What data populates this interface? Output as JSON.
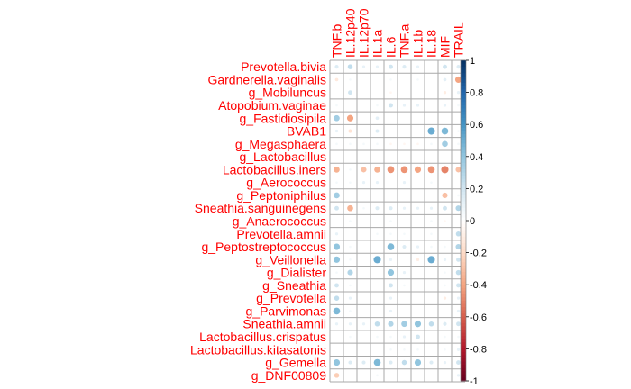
{
  "chart_data": {
    "type": "heatmap",
    "style": "circle correlation plot",
    "columns": [
      "TNF.b",
      "IL.12p40",
      "IL.12p70",
      "IL.1a",
      "IL.6",
      "TNF.a",
      "IL.1b",
      "IL.18",
      "MIF",
      "TRAIL"
    ],
    "rows": [
      "Prevotella.bivia",
      "Gardnerella.vaginalis",
      "g_Mobiluncus",
      "Atopobium.vaginae",
      "g_Fastidiosipila",
      "BVAB1",
      "g_Megasphaera",
      "g_Lactobacillus",
      "Lactobacillus.iners",
      "g_Aerococcus",
      "g_Peptoniphilus",
      "Sneathia.sanguinegens",
      "g_Anaerococcus",
      "Prevotella.amnii",
      "g_Peptostreptococcus",
      "g_Veillonella",
      "g_Dialister",
      "g_Sneathia",
      "g_Prevotella",
      "g_Parvimonas",
      "Sneathia.amnii",
      "Lactobacillus.crispatus",
      "Lactobacillus.kitasatonis",
      "g_Gemella",
      "g_DNF00809"
    ],
    "values": [
      [
        0.15,
        0.25,
        0.1,
        0.1,
        0.2,
        0.15,
        0.1,
        0.0,
        0.2,
        0.15
      ],
      [
        -0.12,
        0.05,
        0.0,
        0.0,
        0.05,
        0.0,
        0.05,
        0.0,
        0.12,
        -0.4
      ],
      [
        0.0,
        0.2,
        0.0,
        0.0,
        -0.05,
        0.0,
        0.0,
        0.0,
        -0.1,
        0.1
      ],
      [
        0.05,
        0.0,
        0.0,
        0.05,
        0.2,
        0.1,
        0.1,
        0.0,
        0.1,
        0.05
      ],
      [
        0.35,
        -0.4,
        0.0,
        0.12,
        0.0,
        0.0,
        0.0,
        0.0,
        0.0,
        0.0
      ],
      [
        0.1,
        -0.15,
        0.0,
        0.15,
        0.0,
        0.0,
        0.0,
        0.5,
        0.45,
        0.05
      ],
      [
        0.05,
        0.05,
        0.05,
        0.05,
        -0.05,
        -0.05,
        -0.05,
        0.05,
        0.35,
        0.05
      ],
      [
        0.0,
        0.0,
        0.0,
        0.0,
        0.0,
        0.0,
        0.0,
        0.0,
        0.0,
        0.0
      ],
      [
        -0.35,
        0.05,
        -0.3,
        -0.35,
        -0.45,
        -0.45,
        -0.4,
        -0.45,
        -0.5,
        -0.3
      ],
      [
        0.05,
        0.05,
        0.1,
        0.1,
        0.0,
        0.1,
        0.0,
        0.05,
        0.0,
        0.0
      ],
      [
        0.35,
        0.0,
        0.0,
        0.0,
        0.0,
        0.0,
        0.0,
        0.0,
        -0.3,
        0.05
      ],
      [
        0.2,
        -0.35,
        0.05,
        0.15,
        0.15,
        0.1,
        0.1,
        0.1,
        0.2,
        0.3
      ],
      [
        0.0,
        0.05,
        0.0,
        0.0,
        0.05,
        0.0,
        0.0,
        0.05,
        -0.05,
        0.0
      ],
      [
        0.1,
        0.0,
        0.0,
        0.05,
        0.05,
        0.05,
        0.0,
        0.05,
        0.0,
        0.25
      ],
      [
        0.4,
        0.05,
        0.0,
        0.0,
        0.45,
        0.15,
        0.1,
        0.05,
        0.05,
        0.3
      ],
      [
        0.4,
        0.05,
        0.0,
        0.5,
        0.1,
        0.0,
        -0.1,
        0.5,
        0.1,
        0.2
      ],
      [
        0.05,
        0.3,
        0.0,
        0.0,
        0.4,
        0.1,
        0.0,
        0.0,
        0.05,
        0.25
      ],
      [
        0.2,
        0.05,
        0.0,
        0.0,
        0.2,
        0.05,
        0.0,
        0.0,
        0.05,
        0.2
      ],
      [
        0.25,
        0.1,
        0.0,
        0.0,
        0.1,
        0.0,
        0.0,
        0.0,
        -0.1,
        0.1
      ],
      [
        0.45,
        0.05,
        0.0,
        0.0,
        0.1,
        0.0,
        0.0,
        0.0,
        0.0,
        0.1
      ],
      [
        0.1,
        0.1,
        0.1,
        0.25,
        0.3,
        0.35,
        0.4,
        0.25,
        0.15,
        0.2
      ],
      [
        0.0,
        0.05,
        0.0,
        0.05,
        0.05,
        0.1,
        0.2,
        0.0,
        0.05,
        0.05
      ],
      [
        0.0,
        0.0,
        0.0,
        0.0,
        0.05,
        0.05,
        0.05,
        0.0,
        0.05,
        0.1
      ],
      [
        0.4,
        0.15,
        0.15,
        0.45,
        0.15,
        0.25,
        0.4,
        0.15,
        0.1,
        0.2
      ],
      [
        -0.25,
        0.0,
        0.0,
        0.05,
        0.0,
        0.0,
        0.0,
        0.0,
        0.0,
        0.1
      ]
    ],
    "colorbar": {
      "range": [
        -1,
        1
      ],
      "ticks": [
        "1",
        "0.8",
        "0.6",
        "0.4",
        "0.2",
        "0",
        "-0.2",
        "-0.4",
        "-0.6",
        "-0.8",
        "-1"
      ]
    },
    "colors": {
      "label": "#ff0000",
      "negative_end": "#67001f",
      "mid": "#ffffff",
      "positive_end": "#053061",
      "grid": "#a9a9a9"
    }
  }
}
